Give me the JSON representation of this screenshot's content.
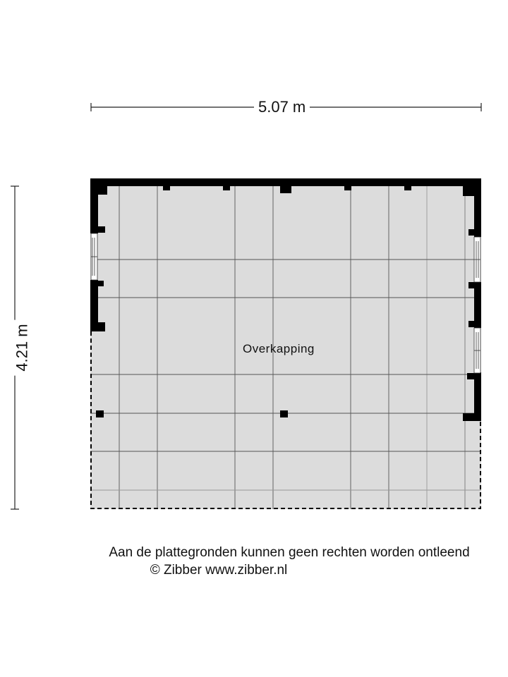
{
  "dimensions": {
    "width": "5.07 m",
    "height": "4.21 m"
  },
  "room": {
    "label": "Overkapping"
  },
  "footer": {
    "disclaimer": "Aan de plattegronden kunnen geen rechten worden ontleend",
    "copyright": "© Zibber www.zibber.nl"
  },
  "colors": {
    "floor": "#dcdcdc",
    "wall": "#000000",
    "grid": "#555555"
  }
}
